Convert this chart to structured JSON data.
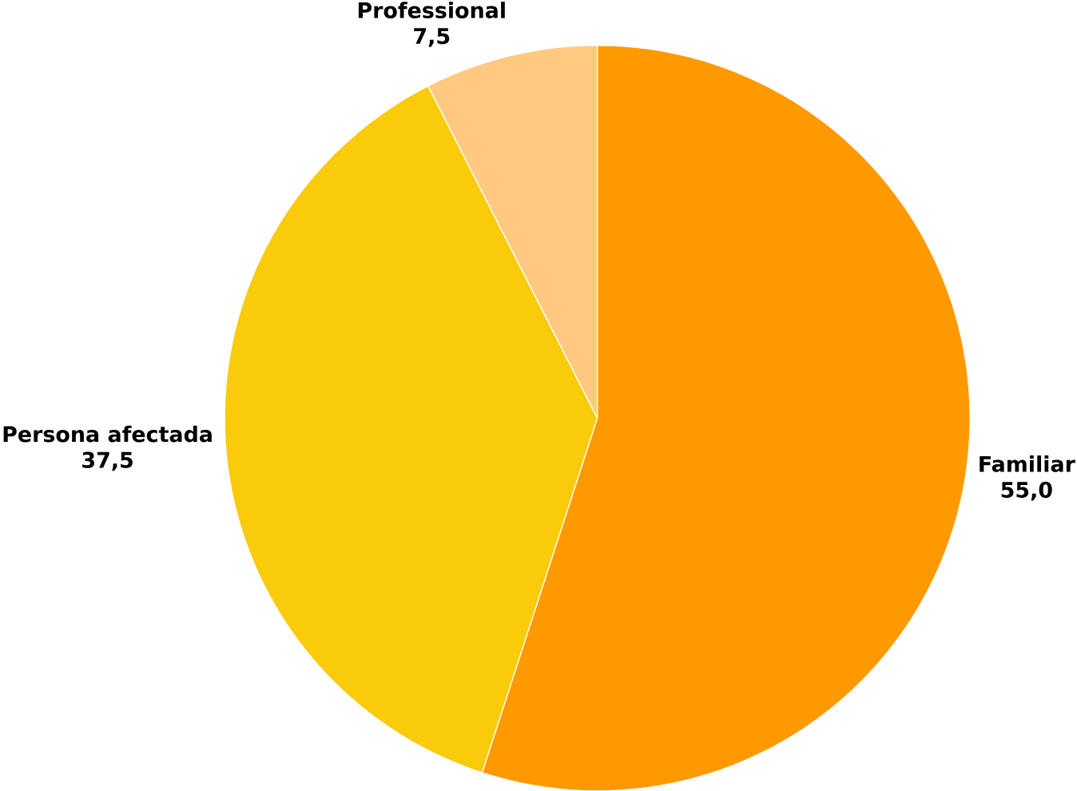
{
  "chart_data": {
    "type": "pie",
    "categories": [
      "Familiar",
      "Persona afectada",
      "Professional"
    ],
    "values": [
      55.0,
      37.5,
      7.5
    ],
    "value_labels": [
      "55,0",
      "37,5",
      "7,5"
    ],
    "colors": [
      "#ff9900",
      "#facb0a",
      "#ffc982"
    ]
  }
}
